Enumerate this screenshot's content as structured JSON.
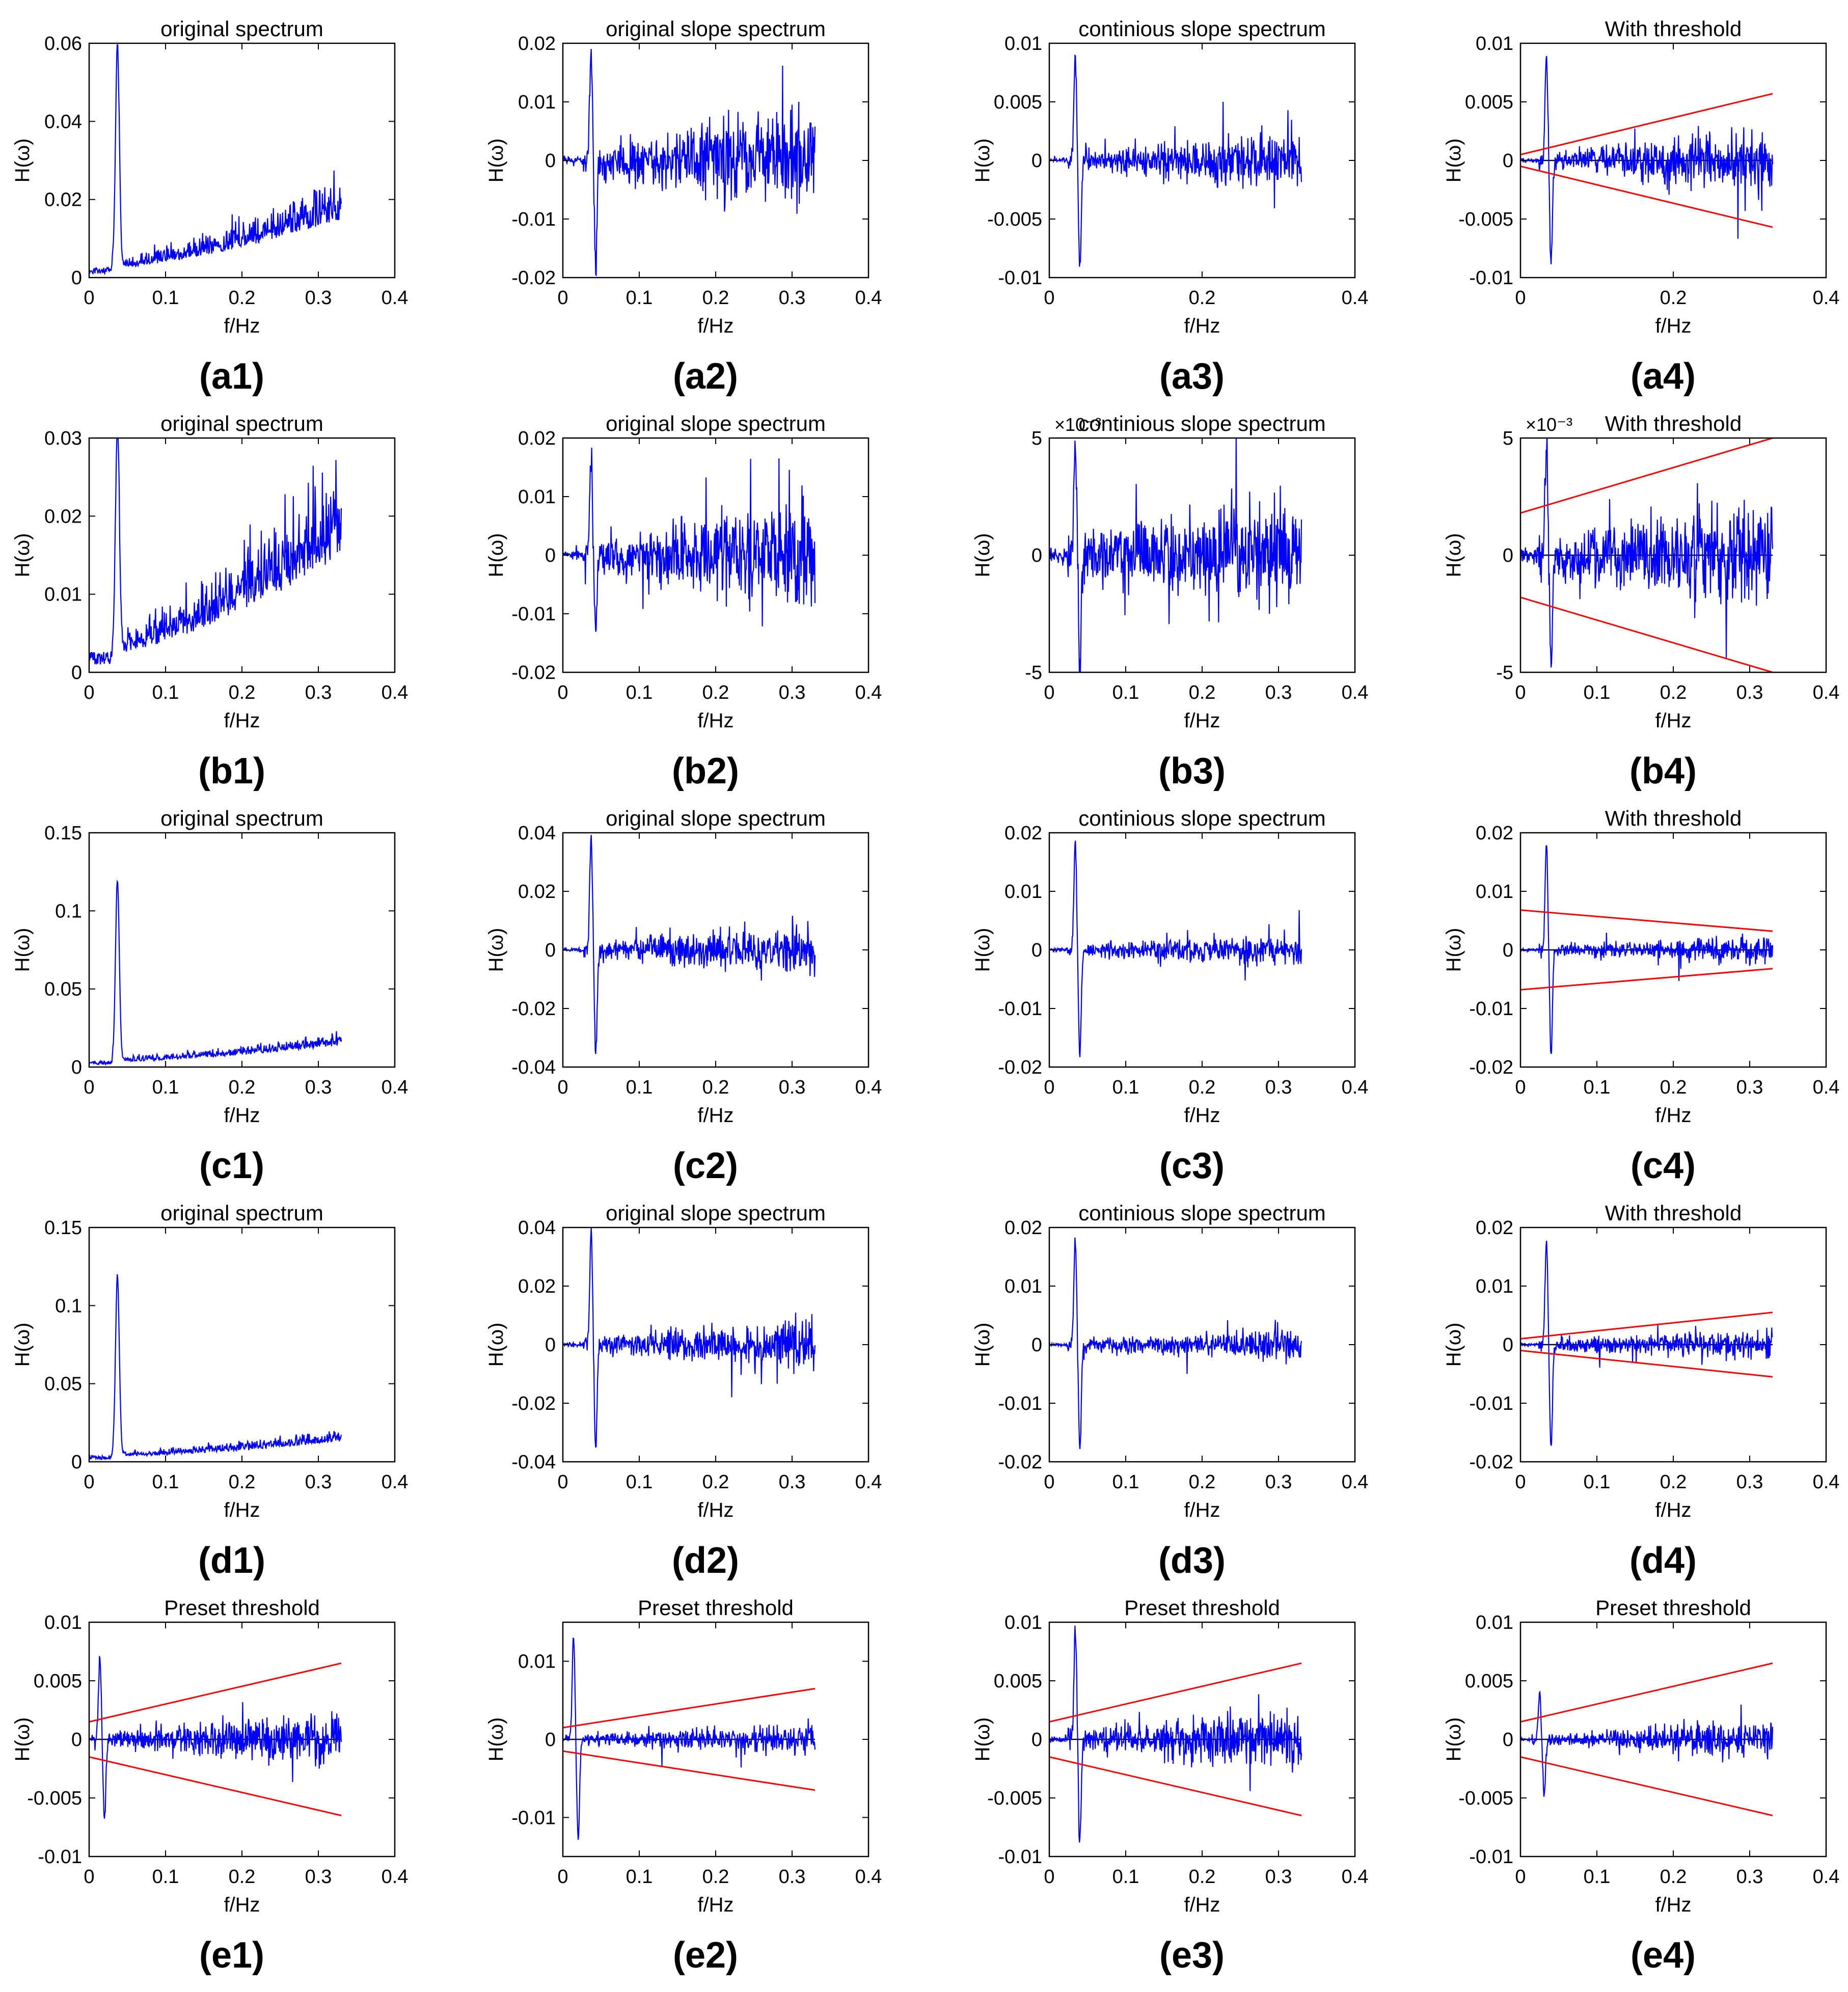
{
  "figure": {
    "y_axis_label": "H(ω)",
    "x_axis_label": "f/Hz",
    "colors": {
      "spectrum": "#0000ff",
      "threshold": "#ff0000",
      "axis": "#000000"
    }
  },
  "chart_data": [
    {
      "id": "a1",
      "label": "(a1)",
      "type": "line",
      "title": "original spectrum",
      "xlabel": "f/Hz",
      "ylabel": "H(ω)",
      "xlim": [
        0,
        0.4
      ],
      "ylim": [
        0,
        0.06
      ],
      "xticks": [
        "0",
        "0.1",
        "0.2",
        "0.3",
        "0.4"
      ],
      "yticks": [
        "0",
        "0.02",
        "0.04",
        "0.06"
      ],
      "series": [
        {
          "name": "spectrum",
          "kind": "spectrum",
          "x_end": 0.33,
          "peak_x": 0.037,
          "peak": 0.057,
          "base_start": 0.002,
          "base_end": 0.015,
          "noise_start": 0.001,
          "noise_end": 0.01
        }
      ]
    },
    {
      "id": "a2",
      "label": "(a2)",
      "type": "line",
      "title": "original slope spectrum",
      "xlabel": "f/Hz",
      "ylabel": "H(ω)",
      "xlim": [
        0,
        0.4
      ],
      "ylim": [
        -0.02,
        0.02
      ],
      "xticks": [
        "0",
        "0.1",
        "0.2",
        "0.3",
        "0.4"
      ],
      "yticks": [
        "-0.02",
        "-0.01",
        "0",
        "0.01",
        "0.02"
      ],
      "series": [
        {
          "name": "slope",
          "kind": "slope",
          "x_end": 0.33,
          "peak_x": 0.037,
          "peak": 0.019,
          "trough": -0.018,
          "noise_start": 0.002,
          "noise_end": 0.009
        }
      ]
    },
    {
      "id": "a3",
      "label": "(a3)",
      "type": "line",
      "title": "continious slope spectrum",
      "xlabel": "f/Hz",
      "ylabel": "H(ω)",
      "xlim": [
        0,
        0.4
      ],
      "ylim": [
        -0.01,
        0.01
      ],
      "xticks": [
        "0",
        "0.2",
        "0.4"
      ],
      "yticks": [
        "-0.01",
        "-0.005",
        "0",
        "0.005",
        "0.01"
      ],
      "series": [
        {
          "name": "continuous slope",
          "kind": "slope",
          "x_end": 0.33,
          "peak_x": 0.034,
          "peak": 0.009,
          "trough": -0.009,
          "noise_start": 0.0005,
          "noise_end": 0.0025
        }
      ]
    },
    {
      "id": "a4",
      "label": "(a4)",
      "type": "line",
      "title": "With threshold",
      "xlabel": "f/Hz",
      "ylabel": "H(ω)",
      "xlim": [
        0,
        0.4
      ],
      "ylim": [
        -0.01,
        0.01
      ],
      "xticks": [
        "0",
        "0.2",
        "0.4"
      ],
      "yticks": [
        "-0.01",
        "-0.005",
        "0",
        "0.005",
        "0.01"
      ],
      "series": [
        {
          "name": "continuous slope",
          "kind": "slope",
          "x_end": 0.33,
          "peak_x": 0.034,
          "peak": 0.009,
          "trough": -0.009,
          "noise_start": 0.0005,
          "noise_end": 0.0025
        },
        {
          "name": "threshold",
          "kind": "threshold",
          "x": [
            0,
            0.33
          ],
          "upper": [
            0.0005,
            0.0057
          ],
          "lower": [
            -0.0005,
            -0.0057
          ]
        }
      ]
    },
    {
      "id": "b1",
      "label": "(b1)",
      "type": "line",
      "title": "original spectrum",
      "xlabel": "f/Hz",
      "ylabel": "H(ω)",
      "xlim": [
        0,
        0.4
      ],
      "ylim": [
        0,
        0.03
      ],
      "xticks": [
        "0",
        "0.1",
        "0.2",
        "0.3",
        "0.4"
      ],
      "yticks": [
        "0",
        "0.01",
        "0.02",
        "0.03"
      ],
      "series": [
        {
          "name": "spectrum",
          "kind": "spectrum",
          "x_end": 0.33,
          "peak_x": 0.037,
          "peak": 0.029,
          "base_start": 0.002,
          "base_end": 0.015,
          "noise_start": 0.001,
          "noise_end": 0.011
        }
      ]
    },
    {
      "id": "b2",
      "label": "(b2)",
      "type": "line",
      "title": "original slope spectrum",
      "xlabel": "f/Hz",
      "ylabel": "H(ω)",
      "xlim": [
        0,
        0.4
      ],
      "ylim": [
        -0.02,
        0.02
      ],
      "xticks": [
        "0",
        "0.1",
        "0.2",
        "0.3",
        "0.4"
      ],
      "yticks": [
        "-0.02",
        "-0.01",
        "0",
        "0.01",
        "0.02"
      ],
      "series": [
        {
          "name": "slope",
          "kind": "slope",
          "x_end": 0.33,
          "peak_x": 0.037,
          "peak": 0.016,
          "trough": -0.012,
          "noise_start": 0.002,
          "noise_end": 0.009
        }
      ]
    },
    {
      "id": "b3",
      "label": "(b3)",
      "type": "line",
      "title": "continious slope spectrum",
      "xlabel": "f/Hz",
      "ylabel": "H(ω)",
      "exponent": "×10⁻³",
      "xlim": [
        0,
        0.4
      ],
      "ylim": [
        -5,
        5
      ],
      "xticks": [
        "0",
        "0.1",
        "0.2",
        "0.3",
        "0.4"
      ],
      "yticks": [
        "-5",
        "0",
        "5"
      ],
      "series": [
        {
          "name": "continuous slope",
          "kind": "slope",
          "x_end": 0.33,
          "peak_x": 0.034,
          "peak": 4.5,
          "trough": -4.5,
          "noise_start": 1.0,
          "noise_end": 2.0
        }
      ]
    },
    {
      "id": "b4",
      "label": "(b4)",
      "type": "line",
      "title": "With threshold",
      "xlabel": "f/Hz",
      "ylabel": "H(ω)",
      "exponent": "×10⁻³",
      "xlim": [
        0,
        0.4
      ],
      "ylim": [
        -5,
        5
      ],
      "xticks": [
        "0",
        "0.1",
        "0.2",
        "0.3",
        "0.4"
      ],
      "yticks": [
        "-5",
        "0",
        "5"
      ],
      "series": [
        {
          "name": "continuous slope",
          "kind": "slope",
          "x_end": 0.33,
          "peak_x": 0.034,
          "peak": 4.5,
          "trough": -4.5,
          "noise_start": 1.0,
          "noise_end": 2.0
        },
        {
          "name": "threshold",
          "kind": "threshold",
          "x": [
            0,
            0.33
          ],
          "upper": [
            1.8,
            5.0
          ],
          "lower": [
            -1.8,
            -5.0
          ]
        }
      ]
    },
    {
      "id": "c1",
      "label": "(c1)",
      "type": "line",
      "title": "original spectrum",
      "xlabel": "f/Hz",
      "ylabel": "H(ω)",
      "xlim": [
        0,
        0.4
      ],
      "ylim": [
        0,
        0.15
      ],
      "xticks": [
        "0",
        "0.1",
        "0.2",
        "0.3",
        "0.4"
      ],
      "yticks": [
        "0",
        "0.05",
        "0.1",
        "0.15"
      ],
      "series": [
        {
          "name": "spectrum",
          "kind": "spectrum",
          "x_end": 0.33,
          "peak_x": 0.037,
          "peak": 0.115,
          "base_start": 0.003,
          "base_end": 0.014,
          "noise_start": 0.002,
          "noise_end": 0.007
        }
      ]
    },
    {
      "id": "c2",
      "label": "(c2)",
      "type": "line",
      "title": "original slope spectrum",
      "xlabel": "f/Hz",
      "ylabel": "H(ω)",
      "xlim": [
        0,
        0.4
      ],
      "ylim": [
        -0.04,
        0.04
      ],
      "xticks": [
        "0",
        "0.1",
        "0.2",
        "0.3",
        "0.4"
      ],
      "yticks": [
        "-0.04",
        "-0.02",
        "0",
        "0.02",
        "0.04"
      ],
      "series": [
        {
          "name": "slope",
          "kind": "slope",
          "x_end": 0.33,
          "peak_x": 0.037,
          "peak": 0.038,
          "trough": -0.035,
          "noise_start": 0.002,
          "noise_end": 0.008
        }
      ]
    },
    {
      "id": "c3",
      "label": "(c3)",
      "type": "line",
      "title": "continious slope spectrum",
      "xlabel": "f/Hz",
      "ylabel": "H(ω)",
      "xlim": [
        0,
        0.4
      ],
      "ylim": [
        -0.02,
        0.02
      ],
      "xticks": [
        "0",
        "0.1",
        "0.2",
        "0.3",
        "0.4"
      ],
      "yticks": [
        "-0.02",
        "-0.01",
        "0",
        "0.01",
        "0.02"
      ],
      "series": [
        {
          "name": "continuous slope",
          "kind": "slope",
          "x_end": 0.33,
          "peak_x": 0.034,
          "peak": 0.018,
          "trough": -0.018,
          "noise_start": 0.0008,
          "noise_end": 0.0025
        }
      ]
    },
    {
      "id": "c4",
      "label": "(c4)",
      "type": "line",
      "title": "With threshold",
      "xlabel": "f/Hz",
      "ylabel": "H(ω)",
      "xlim": [
        0,
        0.4
      ],
      "ylim": [
        -0.02,
        0.02
      ],
      "xticks": [
        "0",
        "0.1",
        "0.2",
        "0.3",
        "0.4"
      ],
      "yticks": [
        "-0.02",
        "-0.01",
        "0",
        "0.01",
        "0.02"
      ],
      "series": [
        {
          "name": "continuous slope",
          "kind": "slope",
          "x_end": 0.33,
          "peak_x": 0.034,
          "peak": 0.018,
          "trough": -0.018,
          "noise_start": 0.0008,
          "noise_end": 0.0025
        },
        {
          "name": "threshold",
          "kind": "threshold",
          "x": [
            0,
            0.33
          ],
          "upper": [
            0.0068,
            0.0032
          ],
          "lower": [
            -0.0068,
            -0.0032
          ]
        }
      ]
    },
    {
      "id": "d1",
      "label": "(d1)",
      "type": "line",
      "title": "original spectrum",
      "xlabel": "f/Hz",
      "ylabel": "H(ω)",
      "xlim": [
        0,
        0.4
      ],
      "ylim": [
        0,
        0.15
      ],
      "xticks": [
        "0",
        "0.1",
        "0.2",
        "0.3",
        "0.4"
      ],
      "yticks": [
        "0",
        "0.05",
        "0.1",
        "0.15"
      ],
      "series": [
        {
          "name": "spectrum",
          "kind": "spectrum",
          "x_end": 0.33,
          "peak_x": 0.037,
          "peak": 0.115,
          "base_start": 0.003,
          "base_end": 0.013,
          "noise_start": 0.002,
          "noise_end": 0.007
        }
      ]
    },
    {
      "id": "d2",
      "label": "(d2)",
      "type": "line",
      "title": "original slope spectrum",
      "xlabel": "f/Hz",
      "ylabel": "H(ω)",
      "xlim": [
        0,
        0.4
      ],
      "ylim": [
        -0.04,
        0.04
      ],
      "xticks": [
        "0",
        "0.1",
        "0.2",
        "0.3",
        "0.4"
      ],
      "yticks": [
        "-0.04",
        "-0.02",
        "0",
        "0.02",
        "0.04"
      ],
      "series": [
        {
          "name": "slope",
          "kind": "slope",
          "x_end": 0.33,
          "peak_x": 0.037,
          "peak": 0.038,
          "trough": -0.035,
          "noise_start": 0.002,
          "noise_end": 0.008
        }
      ]
    },
    {
      "id": "d3",
      "label": "(d3)",
      "type": "line",
      "title": "continious slope spectrum",
      "xlabel": "f/Hz",
      "ylabel": "H(ω)",
      "xlim": [
        0,
        0.4
      ],
      "ylim": [
        -0.02,
        0.02
      ],
      "xticks": [
        "0",
        "0.1",
        "0.2",
        "0.3",
        "0.4"
      ],
      "yticks": [
        "-0.02",
        "-0.01",
        "0",
        "0.01",
        "0.02"
      ],
      "series": [
        {
          "name": "continuous slope",
          "kind": "slope",
          "x_end": 0.33,
          "peak_x": 0.034,
          "peak": 0.018,
          "trough": -0.018,
          "noise_start": 0.0008,
          "noise_end": 0.0025
        }
      ]
    },
    {
      "id": "d4",
      "label": "(d4)",
      "type": "line",
      "title": "With threshold",
      "xlabel": "f/Hz",
      "ylabel": "H(ω)",
      "xlim": [
        0,
        0.4
      ],
      "ylim": [
        -0.02,
        0.02
      ],
      "xticks": [
        "0",
        "0.1",
        "0.2",
        "0.3",
        "0.4"
      ],
      "yticks": [
        "-0.02",
        "-0.01",
        "0",
        "0.01",
        "0.02"
      ],
      "series": [
        {
          "name": "continuous slope",
          "kind": "slope",
          "x_end": 0.33,
          "peak_x": 0.034,
          "peak": 0.018,
          "trough": -0.018,
          "noise_start": 0.0008,
          "noise_end": 0.0025
        },
        {
          "name": "threshold",
          "kind": "threshold",
          "x": [
            0,
            0.33
          ],
          "upper": [
            0.001,
            0.0055
          ],
          "lower": [
            -0.001,
            -0.0055
          ]
        }
      ]
    },
    {
      "id": "e1",
      "label": "(e1)",
      "type": "line",
      "title": "Preset threshold",
      "xlabel": "f/Hz",
      "ylabel": "H(ω)",
      "xlim": [
        0,
        0.4
      ],
      "ylim": [
        -0.01,
        0.01
      ],
      "xticks": [
        "0",
        "0.1",
        "0.2",
        "0.3",
        "0.4"
      ],
      "yticks": [
        "-0.01",
        "-0.005",
        "0",
        "0.005",
        "0.01"
      ],
      "series": [
        {
          "name": "slope",
          "kind": "slope",
          "x_end": 0.33,
          "peak_x": 0.014,
          "peak": 0.007,
          "trough": -0.007,
          "noise_start": 0.0005,
          "noise_end": 0.0022
        },
        {
          "name": "threshold",
          "kind": "threshold",
          "x": [
            0,
            0.33
          ],
          "upper": [
            0.0015,
            0.0065
          ],
          "lower": [
            -0.0015,
            -0.0065
          ]
        }
      ]
    },
    {
      "id": "e2",
      "label": "(e2)",
      "type": "line",
      "title": "Preset threshold",
      "xlabel": "f/Hz",
      "ylabel": "H(ω)",
      "xlim": [
        0,
        0.4
      ],
      "ylim": [
        -0.015,
        0.015
      ],
      "xticks": [
        "0",
        "0.1",
        "0.2",
        "0.3",
        "0.4"
      ],
      "yticks": [
        "-0.01",
        "0",
        "0.01"
      ],
      "series": [
        {
          "name": "slope",
          "kind": "slope",
          "x_end": 0.33,
          "peak_x": 0.014,
          "peak": 0.013,
          "trough": -0.013,
          "noise_start": 0.0005,
          "noise_end": 0.0018
        },
        {
          "name": "threshold",
          "kind": "threshold",
          "x": [
            0,
            0.33
          ],
          "upper": [
            0.0015,
            0.0065
          ],
          "lower": [
            -0.0015,
            -0.0065
          ]
        }
      ]
    },
    {
      "id": "e3",
      "label": "(e3)",
      "type": "line",
      "title": "Preset threshold",
      "xlabel": "f/Hz",
      "ylabel": "H(ω)",
      "xlim": [
        0,
        0.4
      ],
      "ylim": [
        -0.01,
        0.01
      ],
      "xticks": [
        "0",
        "0.1",
        "0.2",
        "0.3",
        "0.4"
      ],
      "yticks": [
        "-0.01",
        "-0.005",
        "0",
        "0.005",
        "0.01"
      ],
      "series": [
        {
          "name": "slope",
          "kind": "slope",
          "x_end": 0.33,
          "peak_x": 0.034,
          "peak": 0.009,
          "trough": -0.009,
          "noise_start": 0.0008,
          "noise_end": 0.0025
        },
        {
          "name": "threshold",
          "kind": "threshold",
          "x": [
            0,
            0.33
          ],
          "upper": [
            0.0015,
            0.0065
          ],
          "lower": [
            -0.0015,
            -0.0065
          ]
        }
      ]
    },
    {
      "id": "e4",
      "label": "(e4)",
      "type": "line",
      "title": "Preset threshold",
      "xlabel": "f/Hz",
      "ylabel": "H(ω)",
      "xlim": [
        0,
        0.4
      ],
      "ylim": [
        -0.01,
        0.01
      ],
      "xticks": [
        "0",
        "0.1",
        "0.2",
        "0.3",
        "0.4"
      ],
      "yticks": [
        "-0.01",
        "-0.005",
        "0",
        "0.005",
        "0.01"
      ],
      "series": [
        {
          "name": "slope",
          "kind": "slope",
          "x_end": 0.33,
          "peak_x": 0.025,
          "peak": 0.004,
          "trough": -0.0045,
          "noise_start": 0.0004,
          "noise_end": 0.0015
        },
        {
          "name": "threshold",
          "kind": "threshold",
          "x": [
            0,
            0.33
          ],
          "upper": [
            0.0015,
            0.0065
          ],
          "lower": [
            -0.0015,
            -0.0065
          ]
        }
      ]
    }
  ]
}
